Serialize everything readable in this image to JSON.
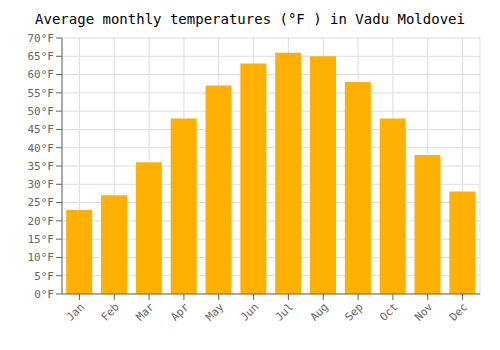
{
  "chart_data": {
    "type": "bar",
    "title": "Average monthly temperatures (°F ) in Vadu Moldovei",
    "categories": [
      "Jan",
      "Feb",
      "Mar",
      "Apr",
      "May",
      "Jun",
      "Jul",
      "Aug",
      "Sep",
      "Oct",
      "Nov",
      "Dec"
    ],
    "values": [
      23,
      27,
      36,
      48,
      57,
      63,
      66,
      65,
      58,
      48,
      38,
      28
    ],
    "color": "#FFB000",
    "ylim": [
      0,
      70
    ],
    "yticks": [
      {
        "value": 0,
        "label": "0°F"
      },
      {
        "value": 5,
        "label": "5°F"
      },
      {
        "value": 10,
        "label": "10°F"
      },
      {
        "value": 15,
        "label": "15°F"
      },
      {
        "value": 20,
        "label": "20°F"
      },
      {
        "value": 25,
        "label": "25°F"
      },
      {
        "value": 30,
        "label": "30°F"
      },
      {
        "value": 35,
        "label": "35°F"
      },
      {
        "value": 40,
        "label": "40°F"
      },
      {
        "value": 45,
        "label": "45°F"
      },
      {
        "value": 50,
        "label": "50°F"
      },
      {
        "value": 55,
        "label": "55°F"
      },
      {
        "value": 60,
        "label": "60°F"
      },
      {
        "value": 65,
        "label": "65°F"
      },
      {
        "value": 70,
        "label": "70°F"
      }
    ],
    "grid": true
  }
}
